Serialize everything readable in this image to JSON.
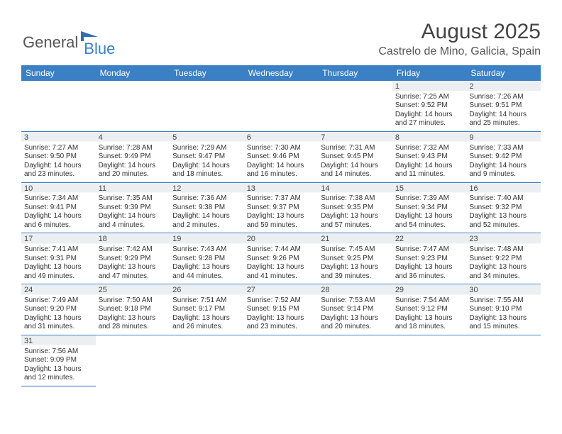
{
  "logo": {
    "part1": "General",
    "part2": "Blue"
  },
  "title": "August 2025",
  "location": "Castrelo de Mino, Galicia, Spain",
  "colors": {
    "header_bg": "#3b7fc4",
    "header_fg": "#ffffff",
    "shade": "#eceff1",
    "border": "#3b7fc4"
  },
  "days": [
    "Sunday",
    "Monday",
    "Tuesday",
    "Wednesday",
    "Thursday",
    "Friday",
    "Saturday"
  ],
  "weeks": [
    [
      null,
      null,
      null,
      null,
      null,
      {
        "n": "1",
        "sr": "Sunrise: 7:25 AM",
        "ss": "Sunset: 9:52 PM",
        "d1": "Daylight: 14 hours",
        "d2": "and 27 minutes."
      },
      {
        "n": "2",
        "sr": "Sunrise: 7:26 AM",
        "ss": "Sunset: 9:51 PM",
        "d1": "Daylight: 14 hours",
        "d2": "and 25 minutes."
      }
    ],
    [
      {
        "n": "3",
        "sr": "Sunrise: 7:27 AM",
        "ss": "Sunset: 9:50 PM",
        "d1": "Daylight: 14 hours",
        "d2": "and 23 minutes."
      },
      {
        "n": "4",
        "sr": "Sunrise: 7:28 AM",
        "ss": "Sunset: 9:49 PM",
        "d1": "Daylight: 14 hours",
        "d2": "and 20 minutes."
      },
      {
        "n": "5",
        "sr": "Sunrise: 7:29 AM",
        "ss": "Sunset: 9:47 PM",
        "d1": "Daylight: 14 hours",
        "d2": "and 18 minutes."
      },
      {
        "n": "6",
        "sr": "Sunrise: 7:30 AM",
        "ss": "Sunset: 9:46 PM",
        "d1": "Daylight: 14 hours",
        "d2": "and 16 minutes."
      },
      {
        "n": "7",
        "sr": "Sunrise: 7:31 AM",
        "ss": "Sunset: 9:45 PM",
        "d1": "Daylight: 14 hours",
        "d2": "and 14 minutes."
      },
      {
        "n": "8",
        "sr": "Sunrise: 7:32 AM",
        "ss": "Sunset: 9:43 PM",
        "d1": "Daylight: 14 hours",
        "d2": "and 11 minutes."
      },
      {
        "n": "9",
        "sr": "Sunrise: 7:33 AM",
        "ss": "Sunset: 9:42 PM",
        "d1": "Daylight: 14 hours",
        "d2": "and 9 minutes."
      }
    ],
    [
      {
        "n": "10",
        "sr": "Sunrise: 7:34 AM",
        "ss": "Sunset: 9:41 PM",
        "d1": "Daylight: 14 hours",
        "d2": "and 6 minutes."
      },
      {
        "n": "11",
        "sr": "Sunrise: 7:35 AM",
        "ss": "Sunset: 9:39 PM",
        "d1": "Daylight: 14 hours",
        "d2": "and 4 minutes."
      },
      {
        "n": "12",
        "sr": "Sunrise: 7:36 AM",
        "ss": "Sunset: 9:38 PM",
        "d1": "Daylight: 14 hours",
        "d2": "and 2 minutes."
      },
      {
        "n": "13",
        "sr": "Sunrise: 7:37 AM",
        "ss": "Sunset: 9:37 PM",
        "d1": "Daylight: 13 hours",
        "d2": "and 59 minutes."
      },
      {
        "n": "14",
        "sr": "Sunrise: 7:38 AM",
        "ss": "Sunset: 9:35 PM",
        "d1": "Daylight: 13 hours",
        "d2": "and 57 minutes."
      },
      {
        "n": "15",
        "sr": "Sunrise: 7:39 AM",
        "ss": "Sunset: 9:34 PM",
        "d1": "Daylight: 13 hours",
        "d2": "and 54 minutes."
      },
      {
        "n": "16",
        "sr": "Sunrise: 7:40 AM",
        "ss": "Sunset: 9:32 PM",
        "d1": "Daylight: 13 hours",
        "d2": "and 52 minutes."
      }
    ],
    [
      {
        "n": "17",
        "sr": "Sunrise: 7:41 AM",
        "ss": "Sunset: 9:31 PM",
        "d1": "Daylight: 13 hours",
        "d2": "and 49 minutes."
      },
      {
        "n": "18",
        "sr": "Sunrise: 7:42 AM",
        "ss": "Sunset: 9:29 PM",
        "d1": "Daylight: 13 hours",
        "d2": "and 47 minutes."
      },
      {
        "n": "19",
        "sr": "Sunrise: 7:43 AM",
        "ss": "Sunset: 9:28 PM",
        "d1": "Daylight: 13 hours",
        "d2": "and 44 minutes."
      },
      {
        "n": "20",
        "sr": "Sunrise: 7:44 AM",
        "ss": "Sunset: 9:26 PM",
        "d1": "Daylight: 13 hours",
        "d2": "and 41 minutes."
      },
      {
        "n": "21",
        "sr": "Sunrise: 7:45 AM",
        "ss": "Sunset: 9:25 PM",
        "d1": "Daylight: 13 hours",
        "d2": "and 39 minutes."
      },
      {
        "n": "22",
        "sr": "Sunrise: 7:47 AM",
        "ss": "Sunset: 9:23 PM",
        "d1": "Daylight: 13 hours",
        "d2": "and 36 minutes."
      },
      {
        "n": "23",
        "sr": "Sunrise: 7:48 AM",
        "ss": "Sunset: 9:22 PM",
        "d1": "Daylight: 13 hours",
        "d2": "and 34 minutes."
      }
    ],
    [
      {
        "n": "24",
        "sr": "Sunrise: 7:49 AM",
        "ss": "Sunset: 9:20 PM",
        "d1": "Daylight: 13 hours",
        "d2": "and 31 minutes."
      },
      {
        "n": "25",
        "sr": "Sunrise: 7:50 AM",
        "ss": "Sunset: 9:18 PM",
        "d1": "Daylight: 13 hours",
        "d2": "and 28 minutes."
      },
      {
        "n": "26",
        "sr": "Sunrise: 7:51 AM",
        "ss": "Sunset: 9:17 PM",
        "d1": "Daylight: 13 hours",
        "d2": "and 26 minutes."
      },
      {
        "n": "27",
        "sr": "Sunrise: 7:52 AM",
        "ss": "Sunset: 9:15 PM",
        "d1": "Daylight: 13 hours",
        "d2": "and 23 minutes."
      },
      {
        "n": "28",
        "sr": "Sunrise: 7:53 AM",
        "ss": "Sunset: 9:14 PM",
        "d1": "Daylight: 13 hours",
        "d2": "and 20 minutes."
      },
      {
        "n": "29",
        "sr": "Sunrise: 7:54 AM",
        "ss": "Sunset: 9:12 PM",
        "d1": "Daylight: 13 hours",
        "d2": "and 18 minutes."
      },
      {
        "n": "30",
        "sr": "Sunrise: 7:55 AM",
        "ss": "Sunset: 9:10 PM",
        "d1": "Daylight: 13 hours",
        "d2": "and 15 minutes."
      }
    ],
    [
      {
        "n": "31",
        "sr": "Sunrise: 7:56 AM",
        "ss": "Sunset: 9:09 PM",
        "d1": "Daylight: 13 hours",
        "d2": "and 12 minutes."
      },
      null,
      null,
      null,
      null,
      null,
      null
    ]
  ]
}
